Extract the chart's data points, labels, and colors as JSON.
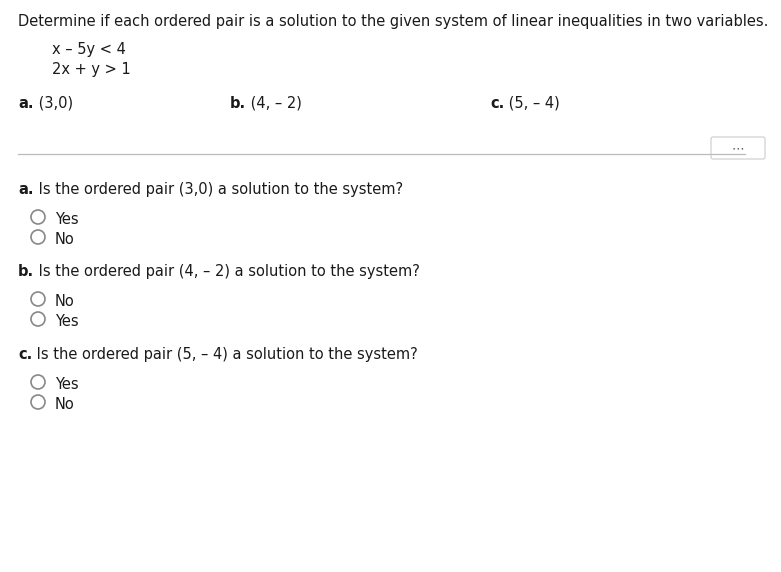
{
  "title": "Determine if each ordered pair is a solution to the given system of linear inequalities in two variables.",
  "system_line1": "x – 5y < 4",
  "system_line2": "2x + y > 1",
  "bg_color": "#ffffff",
  "text_color": "#1a1a1a",
  "font_size_title": 10.5,
  "font_size_system": 10.5,
  "font_size_parts": 10.5,
  "font_size_question": 10.5,
  "font_size_option": 10.5,
  "circle_color": "#888888",
  "circle_linewidth": 1.2,
  "divider_color": "#bbbbbb",
  "dots_box_color": "#cccccc"
}
